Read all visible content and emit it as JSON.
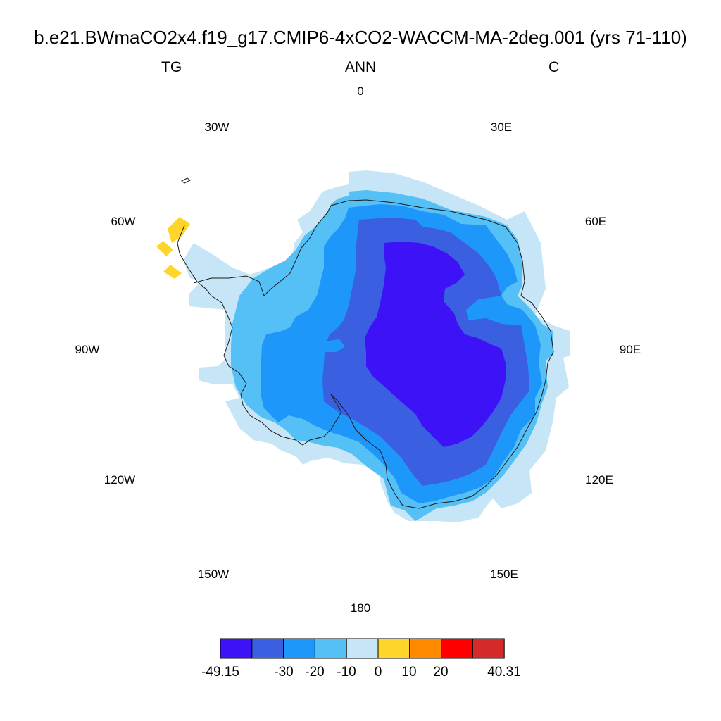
{
  "title": "b.e21.BWmaCO2x4.f19_g17.CMIP6-4xCO2-WACCM-MA-2deg.001 (yrs 71-110)",
  "left_label": "TG",
  "center_label": "ANN",
  "right_label": "C",
  "longitude_labels": {
    "lon_0": "0",
    "lon_30e": "30E",
    "lon_60e": "60E",
    "lon_90e": "90E",
    "lon_120e": "120E",
    "lon_150e": "150E",
    "lon_180": "180",
    "lon_150w": "150W",
    "lon_120w": "120W",
    "lon_90w": "90W",
    "lon_60w": "60W",
    "lon_30w": "30W"
  },
  "colorbar": {
    "colors": [
      "#3e12f6",
      "#3a5fe0",
      "#1e97fb",
      "#54c0f5",
      "#c6e6f7",
      "#ffd52b",
      "#ff8a00",
      "#ff0000",
      "#d42a2a"
    ],
    "labels": {
      "min": "-49.15",
      "l1": "-30",
      "l2": "-20",
      "l3": "-10",
      "l4": "0",
      "l5": "10",
      "l6": "20",
      "max": "40.31"
    }
  }
}
